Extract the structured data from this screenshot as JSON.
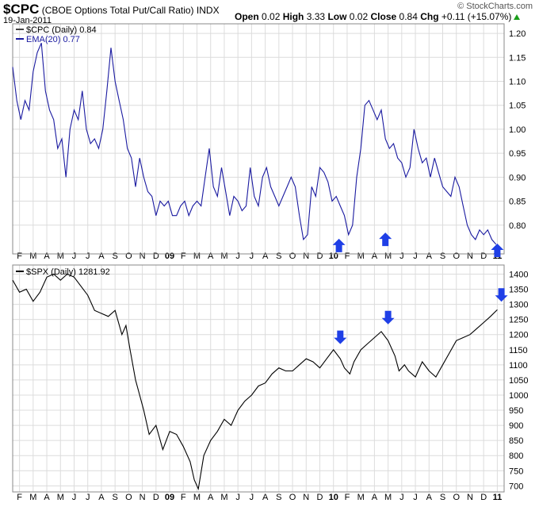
{
  "header": {
    "symbol": "$CPC",
    "description": "(CBOE Options Total Put/Call Ratio)",
    "exchange": "INDX",
    "date": "19-Jan-2011",
    "open_label": "Open",
    "open": "0.02",
    "high_label": "High",
    "high": "3.33",
    "low_label": "Low",
    "low": "0.02",
    "close_label": "Close",
    "close": "0.84",
    "chg_label": "Chg",
    "chg": "+0.11 (+15.07%)",
    "brand": "© StockCharts.com"
  },
  "colors": {
    "cpc_line": "#1a1aa0",
    "spx_line": "#000000",
    "arrow": "#1f3fe6",
    "grid": "#dcdcdc",
    "up": "#1a9e1a"
  },
  "month_ticks": [
    "F",
    "M",
    "A",
    "M",
    "J",
    "J",
    "A",
    "S",
    "O",
    "N",
    "D",
    "09",
    "F",
    "M",
    "A",
    "M",
    "J",
    "J",
    "A",
    "S",
    "O",
    "N",
    "D",
    "10",
    "F",
    "M",
    "A",
    "M",
    "J",
    "J",
    "A",
    "S",
    "O",
    "N",
    "D",
    "11"
  ],
  "chart_data": [
    {
      "type": "line",
      "panel": "top",
      "legend": {
        "series": "$CPC (Daily)",
        "series_value": "0.84",
        "ema": "EMA(20)",
        "ema_value": "0.77"
      },
      "ylim": [
        0.74,
        1.22
      ],
      "yticks": [
        0.8,
        0.85,
        0.9,
        0.95,
        1.0,
        1.05,
        1.1,
        1.15,
        1.2
      ],
      "xlim": [
        0,
        36
      ],
      "series": [
        {
          "name": "$CPC (Daily)",
          "x": [
            0,
            0.3,
            0.6,
            0.9,
            1.2,
            1.5,
            1.8,
            2.1,
            2.4,
            2.7,
            3.0,
            3.3,
            3.6,
            3.9,
            4.2,
            4.5,
            4.8,
            5.1,
            5.4,
            5.7,
            6.0,
            6.3,
            6.6,
            6.9,
            7.2,
            7.5,
            7.8,
            8.1,
            8.4,
            8.7,
            9.0,
            9.3,
            9.6,
            9.9,
            10.2,
            10.5,
            10.8,
            11.1,
            11.4,
            11.7,
            12.0,
            12.3,
            12.6,
            12.9,
            13.2,
            13.5,
            13.8,
            14.1,
            14.4,
            14.7,
            15.0,
            15.3,
            15.6,
            15.9,
            16.2,
            16.5,
            16.8,
            17.1,
            17.4,
            17.7,
            18.0,
            18.3,
            18.6,
            18.9,
            19.2,
            19.5,
            19.8,
            20.1,
            20.4,
            20.7,
            21.0,
            21.3,
            21.6,
            21.9,
            22.2,
            22.5,
            22.8,
            23.1,
            23.4,
            23.7,
            24.0,
            24.3,
            24.6,
            24.9,
            25.2,
            25.5,
            25.8,
            26.1,
            26.4,
            26.7,
            27.0,
            27.3,
            27.6,
            27.9,
            28.2,
            28.5,
            28.8,
            29.1,
            29.4,
            29.7,
            30.0,
            30.3,
            30.6,
            30.9,
            31.2,
            31.5,
            31.8,
            32.1,
            32.4,
            32.7,
            33.0,
            33.3,
            33.6,
            33.9,
            34.2,
            34.5,
            34.8,
            35.1,
            35.4
          ],
          "values": [
            1.13,
            1.06,
            1.02,
            1.06,
            1.04,
            1.12,
            1.16,
            1.18,
            1.08,
            1.04,
            1.02,
            0.96,
            0.98,
            0.9,
            1.0,
            1.04,
            1.02,
            1.08,
            1.0,
            0.97,
            0.98,
            0.96,
            1.0,
            1.08,
            1.17,
            1.1,
            1.06,
            1.02,
            0.96,
            0.94,
            0.88,
            0.94,
            0.9,
            0.87,
            0.86,
            0.82,
            0.85,
            0.84,
            0.85,
            0.82,
            0.82,
            0.84,
            0.85,
            0.82,
            0.84,
            0.85,
            0.84,
            0.9,
            0.96,
            0.88,
            0.86,
            0.92,
            0.87,
            0.82,
            0.86,
            0.85,
            0.83,
            0.84,
            0.92,
            0.86,
            0.84,
            0.9,
            0.92,
            0.88,
            0.86,
            0.84,
            0.86,
            0.88,
            0.9,
            0.88,
            0.82,
            0.77,
            0.78,
            0.88,
            0.86,
            0.92,
            0.91,
            0.89,
            0.85,
            0.86,
            0.84,
            0.82,
            0.78,
            0.8,
            0.9,
            0.96,
            1.05,
            1.06,
            1.04,
            1.02,
            1.04,
            0.98,
            0.96,
            0.97,
            0.94,
            0.93,
            0.9,
            0.92,
            1.0,
            0.96,
            0.93,
            0.94,
            0.9,
            0.94,
            0.91,
            0.88,
            0.87,
            0.86,
            0.9,
            0.88,
            0.84,
            0.8,
            0.78,
            0.77,
            0.79,
            0.78,
            0.79,
            0.77,
            0.76
          ]
        }
      ],
      "annotations": [
        {
          "type": "arrow-up",
          "x": 23.9,
          "y": 0.755
        },
        {
          "type": "arrow-up",
          "x": 27.3,
          "y": 0.768
        },
        {
          "type": "arrow-up",
          "x": 35.5,
          "y": 0.745
        }
      ]
    },
    {
      "type": "line",
      "panel": "bottom",
      "legend": {
        "series": "$SPX (Daily)",
        "series_value": "1281.92"
      },
      "ylim": [
        680,
        1430
      ],
      "yticks": [
        700,
        750,
        800,
        850,
        900,
        950,
        1000,
        1050,
        1100,
        1150,
        1200,
        1250,
        1300,
        1350,
        1400
      ],
      "xlim": [
        0,
        36
      ],
      "series": [
        {
          "name": "$SPX (Daily)",
          "x": [
            0,
            0.5,
            1.0,
            1.5,
            2.0,
            2.5,
            3.0,
            3.5,
            4.0,
            4.5,
            5.0,
            5.5,
            6.0,
            6.5,
            7.0,
            7.5,
            8.0,
            8.3,
            8.6,
            9.0,
            9.3,
            9.6,
            10.0,
            10.5,
            11.0,
            11.5,
            12.0,
            12.5,
            13.0,
            13.3,
            13.6,
            14.0,
            14.5,
            15.0,
            15.5,
            16.0,
            16.5,
            17.0,
            17.5,
            18.0,
            18.5,
            19.0,
            19.5,
            20.0,
            20.5,
            21.0,
            21.5,
            22.0,
            22.5,
            23.0,
            23.5,
            24.0,
            24.3,
            24.7,
            25.0,
            25.5,
            26.0,
            26.5,
            27.0,
            27.5,
            28.0,
            28.3,
            28.7,
            29.0,
            29.5,
            30.0,
            30.5,
            31.0,
            31.5,
            32.0,
            32.5,
            33.0,
            33.5,
            34.0,
            34.5,
            35.0,
            35.5
          ],
          "values": [
            1380,
            1340,
            1350,
            1310,
            1340,
            1390,
            1400,
            1380,
            1400,
            1390,
            1360,
            1330,
            1280,
            1270,
            1260,
            1280,
            1200,
            1230,
            1150,
            1050,
            1000,
            950,
            870,
            900,
            820,
            880,
            870,
            830,
            780,
            720,
            690,
            800,
            850,
            880,
            920,
            900,
            950,
            980,
            1000,
            1030,
            1040,
            1070,
            1090,
            1080,
            1080,
            1100,
            1120,
            1110,
            1090,
            1120,
            1150,
            1120,
            1090,
            1070,
            1110,
            1150,
            1170,
            1190,
            1210,
            1180,
            1130,
            1080,
            1100,
            1080,
            1060,
            1110,
            1080,
            1060,
            1100,
            1140,
            1180,
            1190,
            1200,
            1220,
            1240,
            1260,
            1282
          ]
        }
      ],
      "annotations": [
        {
          "type": "arrow-down",
          "x": 24.0,
          "y": 1195
        },
        {
          "type": "arrow-down",
          "x": 27.5,
          "y": 1260
        },
        {
          "type": "arrow-down",
          "x": 35.8,
          "y": 1335
        }
      ]
    }
  ]
}
